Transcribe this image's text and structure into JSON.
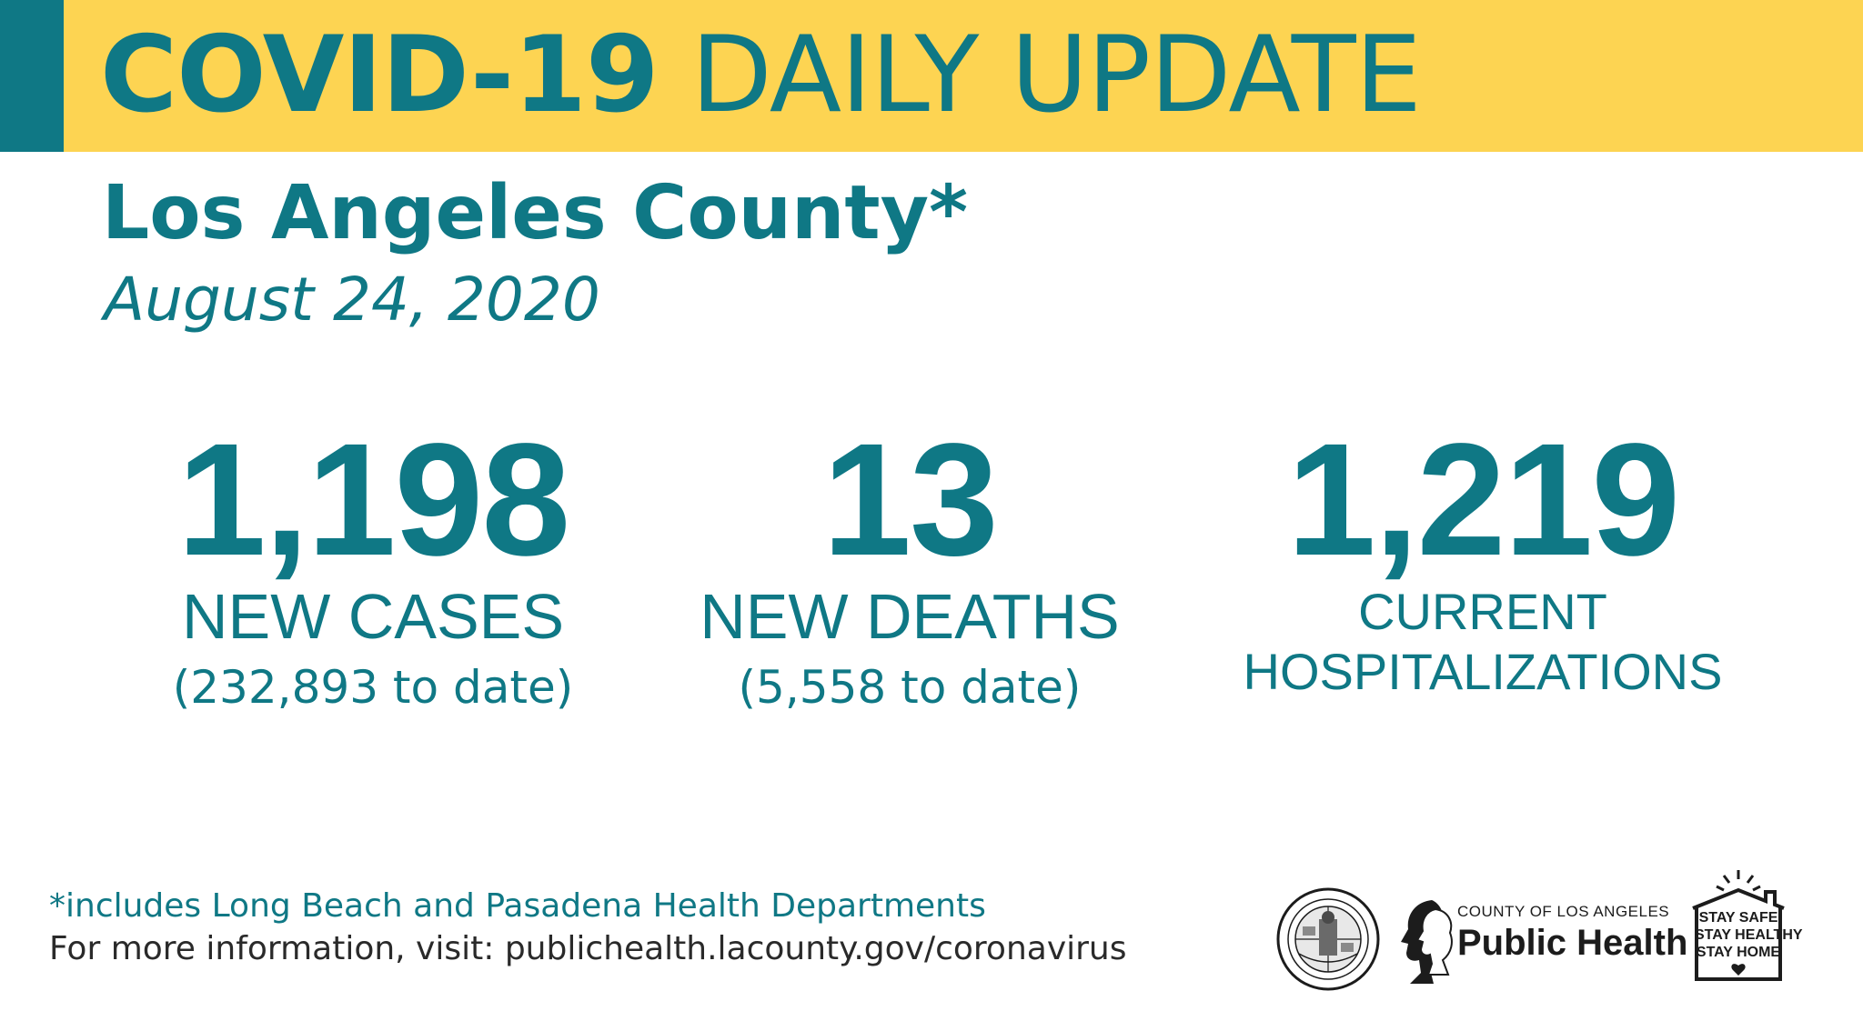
{
  "header": {
    "title_bold": "COVID-19",
    "title_light": "DAILY UPDATE"
  },
  "subtitle": {
    "county": "Los Angeles County*",
    "date": "August 24, 2020"
  },
  "stats": {
    "new_cases": {
      "value": "1,198",
      "label": "NEW CASES",
      "to_date": "(232,893 to date)"
    },
    "new_deaths": {
      "value": "13",
      "label": "NEW DEATHS",
      "to_date": "(5,558 to date)"
    },
    "hospitalizations": {
      "value": "1,219",
      "label_line1": "CURRENT",
      "label_line2": "HOSPITALIZATIONS"
    }
  },
  "footer": {
    "note": "*includes Long Beach and Pasadena Health Departments",
    "more_info_prefix": "For more information, visit: ",
    "more_info_url": "publichealth.lacounty.gov/coronavirus"
  },
  "logos": {
    "seal_icon": "county-seal-icon",
    "public_health_small": "County of Los Angeles",
    "public_health_big": "Public Health",
    "stay_line1": "STAY SAFE",
    "stay_line2": "STAY HEALTHY",
    "stay_line3": "STAY HOME"
  },
  "colors": {
    "teal": "#0f7885",
    "yellow": "#fdd452",
    "dark": "#1c1c1c"
  }
}
